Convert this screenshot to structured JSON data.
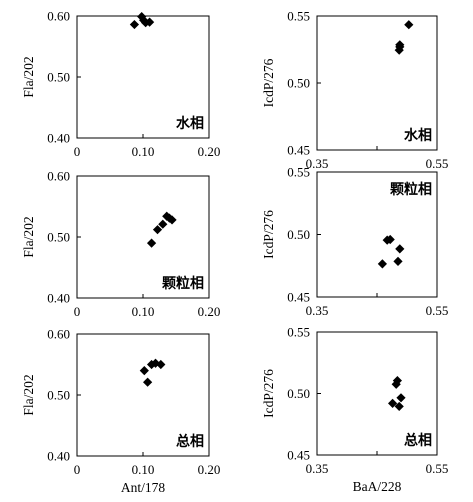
{
  "chart_data": [
    {
      "type": "scatter",
      "phase_label": "水相",
      "xlabel": "",
      "ylabel": "Fla/202",
      "xlim": [
        0,
        0.2
      ],
      "ylim": [
        0.4,
        0.6
      ],
      "xticks": [
        "0",
        "0.10",
        "0.20"
      ],
      "yticks": [
        "0.40",
        "0.50",
        "0.60"
      ],
      "points": [
        [
          0.087,
          0.586
        ],
        [
          0.098,
          0.599
        ],
        [
          0.101,
          0.593
        ],
        [
          0.104,
          0.589
        ],
        [
          0.11,
          0.59
        ]
      ]
    },
    {
      "type": "scatter",
      "phase_label": "水相",
      "xlabel": "",
      "ylabel": "IcdP/276",
      "xlim": [
        0.35,
        0.55
      ],
      "ylim": [
        0.45,
        0.55
      ],
      "xticks": [
        "0.35",
        "",
        "0.55"
      ],
      "yticks": [
        "0.45",
        "0.50",
        "0.55"
      ],
      "points": [
        [
          0.487,
          0.5245
        ],
        [
          0.488,
          0.527
        ],
        [
          0.488,
          0.5285
        ],
        [
          0.503,
          0.5435
        ]
      ]
    },
    {
      "type": "scatter",
      "phase_label": "颗粒相",
      "xlabel": "",
      "ylabel": "Fla/202",
      "xlim": [
        0,
        0.2
      ],
      "ylim": [
        0.4,
        0.6
      ],
      "xticks": [
        "0",
        "0.10",
        "0.20"
      ],
      "yticks": [
        "0.40",
        "0.50",
        "0.60"
      ],
      "points": [
        [
          0.113,
          0.49
        ],
        [
          0.122,
          0.512
        ],
        [
          0.13,
          0.521
        ],
        [
          0.136,
          0.534
        ],
        [
          0.14,
          0.531
        ],
        [
          0.144,
          0.528
        ]
      ]
    },
    {
      "type": "scatter",
      "phase_label": "颗粒相",
      "xlabel": "",
      "ylabel": "IcdP/276",
      "xlim": [
        0.35,
        0.55
      ],
      "ylim": [
        0.45,
        0.55
      ],
      "xticks": [
        "0.35",
        "",
        "0.55"
      ],
      "yticks": [
        "0.45",
        "0.50",
        "0.55"
      ],
      "points": [
        [
          0.459,
          0.4765
        ],
        [
          0.467,
          0.4955
        ],
        [
          0.472,
          0.496
        ],
        [
          0.485,
          0.4785
        ],
        [
          0.488,
          0.4885
        ]
      ]
    },
    {
      "type": "scatter",
      "phase_label": "总相",
      "xlabel": "Ant/178",
      "ylabel": "Fla/202",
      "xlim": [
        0,
        0.2
      ],
      "ylim": [
        0.4,
        0.6
      ],
      "xticks": [
        "0",
        "0.10",
        "0.20"
      ],
      "yticks": [
        "0.40",
        "0.50",
        "0.60"
      ],
      "points": [
        [
          0.102,
          0.54
        ],
        [
          0.107,
          0.521
        ],
        [
          0.113,
          0.55
        ],
        [
          0.119,
          0.552
        ],
        [
          0.127,
          0.55
        ]
      ]
    },
    {
      "type": "scatter",
      "phase_label": "总相",
      "xlabel": "BaA/228",
      "ylabel": "IcdP/276",
      "xlim": [
        0.35,
        0.55
      ],
      "ylim": [
        0.45,
        0.55
      ],
      "xticks": [
        "0.35",
        "",
        "0.55"
      ],
      "yticks": [
        "0.45",
        "0.50",
        "0.55"
      ],
      "points": [
        [
          0.476,
          0.492
        ],
        [
          0.482,
          0.5075
        ],
        [
          0.484,
          0.5105
        ],
        [
          0.487,
          0.4895
        ],
        [
          0.49,
          0.4965
        ]
      ]
    }
  ]
}
